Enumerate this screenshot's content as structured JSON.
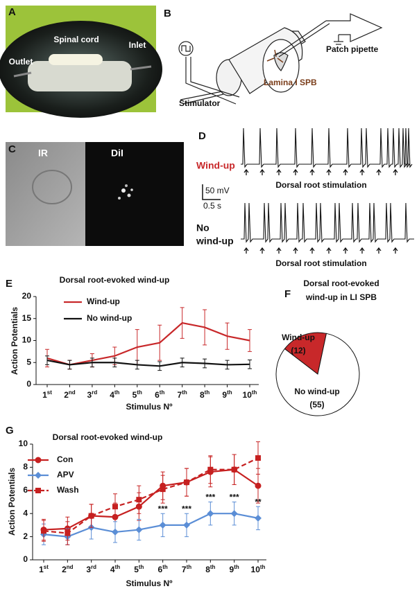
{
  "panels": {
    "A": {
      "label": "A",
      "spinal": "Spinal cord",
      "outlet": "Outlet",
      "inlet": "Inlet"
    },
    "B": {
      "label": "B",
      "pipette": "Patch pipette",
      "lamina": "Lamina I SPB",
      "stimulator": "Stimulator"
    },
    "C": {
      "label": "C",
      "left": "IR",
      "right": "DiI"
    },
    "D": {
      "label": "D",
      "trace1": "Wind-up",
      "trace2": [
        "No",
        "wind-up"
      ],
      "stim": "Dorsal root stimulation",
      "scale_v": "50 mV",
      "scale_t": "0.5 s"
    }
  },
  "chart_data": [
    {
      "type": "line",
      "panel": "E",
      "title": "Dorsal root-evoked wind-up",
      "xlabel": "Stimulus Nº",
      "ylabel": "Action Potentials",
      "categories": [
        "1st",
        "2nd",
        "3rd",
        "4th",
        "5th",
        "6th",
        "7th",
        "8th",
        "9th",
        "10th"
      ],
      "ylim": [
        0,
        20
      ],
      "yticks": [
        0,
        5,
        10,
        15,
        20
      ],
      "series": [
        {
          "name": "Wind-up",
          "color": "#c8282a",
          "marker": "none",
          "dash": false,
          "values": [
            6,
            4.5,
            5.5,
            6.5,
            8.5,
            9.5,
            14,
            13,
            11,
            10
          ],
          "errors": [
            2,
            1,
            1.5,
            2,
            4,
            4,
            3.5,
            4,
            3,
            2.5
          ]
        },
        {
          "name": "No wind-up",
          "color": "#111111",
          "marker": "none",
          "dash": false,
          "values": [
            5.5,
            4.5,
            5,
            5,
            4.5,
            4.2,
            5,
            4.8,
            4.5,
            4.6
          ],
          "errors": [
            1,
            1,
            1,
            1,
            1,
            1,
            1,
            1,
            1,
            1
          ]
        }
      ]
    },
    {
      "type": "pie",
      "panel": "F",
      "title": [
        "Dorsal root-evoked",
        "wind-up in LI SPB"
      ],
      "categories": [
        "Wind-up",
        "No wind-up"
      ],
      "values": [
        12,
        55
      ],
      "value_labels": [
        "(12)",
        "(55)"
      ],
      "colors": [
        "#c8282a",
        "#ffffff"
      ]
    },
    {
      "type": "line",
      "panel": "G",
      "title": "Dorsal root-evoked wind-up",
      "xlabel": "Stimulus Nº",
      "ylabel": "Action Potentials",
      "categories": [
        "1st",
        "2nd",
        "3rd",
        "4th",
        "5th",
        "6th",
        "7th",
        "8th",
        "9th",
        "10th"
      ],
      "ylim": [
        0,
        10
      ],
      "yticks": [
        0,
        2,
        4,
        6,
        8,
        10
      ],
      "series": [
        {
          "name": "Con",
          "color": "#c62020",
          "marker": "circle",
          "dash": false,
          "values": [
            2.6,
            2.7,
            3.8,
            3.7,
            4.6,
            6.4,
            6.7,
            7.6,
            7.8,
            6.4
          ],
          "errors": [
            0.9,
            1,
            1,
            1.2,
            1.2,
            1.2,
            1.2,
            1.3,
            1.3,
            1.5
          ]
        },
        {
          "name": "APV",
          "color": "#5b8ed6",
          "marker": "diamond",
          "dash": false,
          "values": [
            2.2,
            2,
            2.8,
            2.4,
            2.6,
            3,
            3,
            4,
            4,
            3.6
          ],
          "errors": [
            0.9,
            0.7,
            1,
            0.9,
            0.9,
            1,
            1,
            1,
            1,
            1
          ]
        },
        {
          "name": "Wash",
          "color": "#c62020",
          "marker": "square",
          "dash": true,
          "values": [
            2.5,
            2.3,
            3.8,
            4.6,
            5.2,
            6.1,
            6.7,
            7.8,
            7.8,
            8.8
          ],
          "errors": [
            0.9,
            1,
            1,
            1.1,
            1.2,
            1.2,
            1.2,
            1.2,
            1.3,
            1.4
          ]
        }
      ],
      "annotations": [
        {
          "text": "***",
          "category": "6th"
        },
        {
          "text": "***",
          "category": "7th"
        },
        {
          "text": "***",
          "category": "8th"
        },
        {
          "text": "***",
          "category": "9th"
        },
        {
          "text": "**",
          "category": "10th"
        }
      ]
    }
  ]
}
